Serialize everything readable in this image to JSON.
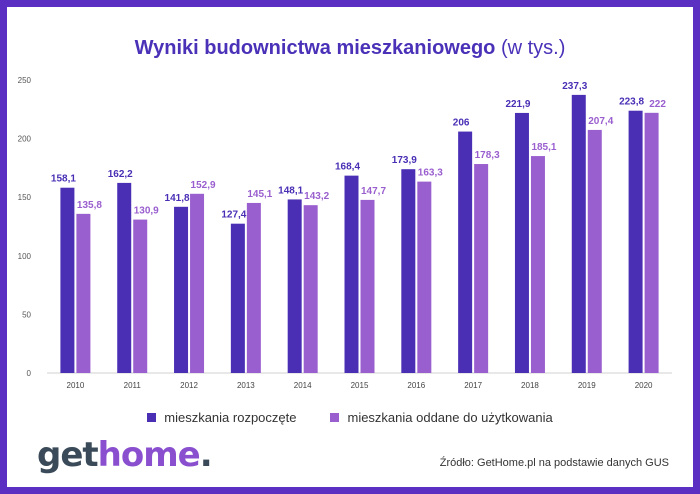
{
  "title": {
    "main": "Wyniki budownictwa mieszkaniowego",
    "unit": "(w tys.)"
  },
  "colors": {
    "series1": "#4a2fb5",
    "series2": "#9a5fcf",
    "border": "#5a2fc2"
  },
  "chart_data": {
    "type": "bar",
    "title": "Wyniki budownictwa mieszkaniowego (w tys.)",
    "categories": [
      "2010",
      "2011",
      "2012",
      "2013",
      "2014",
      "2015",
      "2016",
      "2017",
      "2018",
      "2019",
      "2020"
    ],
    "series": [
      {
        "name": "mieszkania rozpoczęte",
        "values": [
          158.1,
          162.2,
          141.8,
          127.4,
          148.1,
          168.4,
          173.9,
          206,
          221.9,
          237.3,
          223.8
        ],
        "labels": [
          "158,1",
          "162,2",
          "141,8",
          "127,4",
          "148,1",
          "168,4",
          "173,9",
          "206",
          "221,9",
          "237,3",
          "223,8"
        ]
      },
      {
        "name": "mieszkania oddane do użytkowania",
        "values": [
          135.8,
          130.9,
          152.9,
          145.1,
          143.2,
          147.7,
          163.3,
          178.3,
          185.1,
          207.4,
          222
        ],
        "labels": [
          "135,8",
          "130,9",
          "152,9",
          "145,1",
          "143,2",
          "147,7",
          "163,3",
          "178,3",
          "185,1",
          "207,4",
          "222"
        ]
      }
    ],
    "ylim": [
      0,
      250
    ],
    "yticks": [
      0,
      50,
      100,
      150,
      200,
      250
    ],
    "grid": false,
    "legend_position": "bottom"
  },
  "logo": {
    "part1": "get",
    "part2": "home",
    "part3": "."
  },
  "source": "Źródło: GetHome.pl na podstawie danych GUS"
}
